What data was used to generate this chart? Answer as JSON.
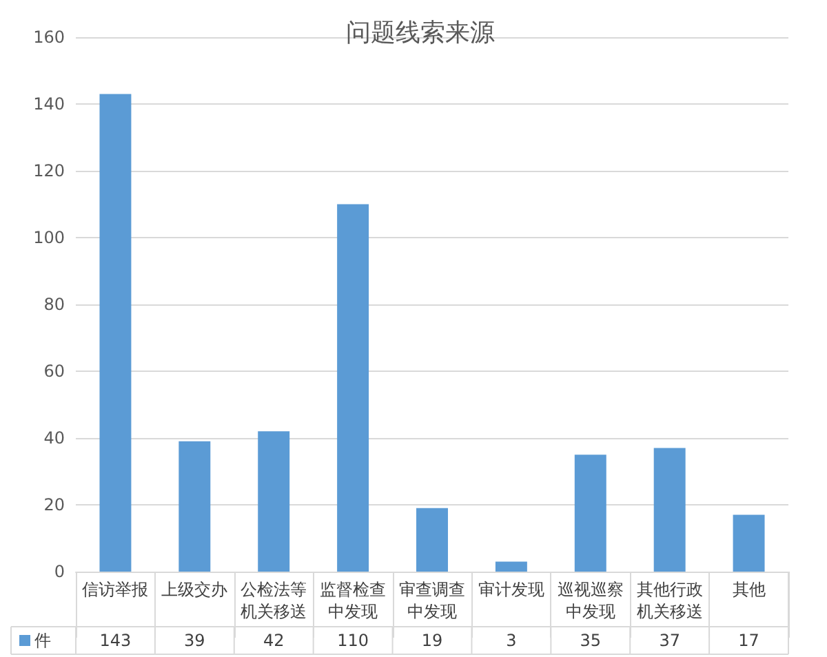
{
  "chart_data": {
    "type": "bar",
    "title": "问题线索来源",
    "categories": [
      "信访举报",
      "上级交办",
      "公检法等机关移送",
      "监督检查中发现",
      "审查调查中发现",
      "审计发现",
      "巡视巡察中发现",
      "其他行政机关移送",
      "其他"
    ],
    "series": [
      {
        "name": "件",
        "color": "#5b9bd5",
        "values": [
          143,
          39,
          42,
          110,
          19,
          3,
          35,
          37,
          17
        ]
      }
    ],
    "ylim": [
      0,
      160
    ],
    "yticks": [
      0,
      20,
      40,
      60,
      80,
      100,
      120,
      140,
      160
    ],
    "grid": "y",
    "legend": "bottom",
    "data_labels": true
  }
}
